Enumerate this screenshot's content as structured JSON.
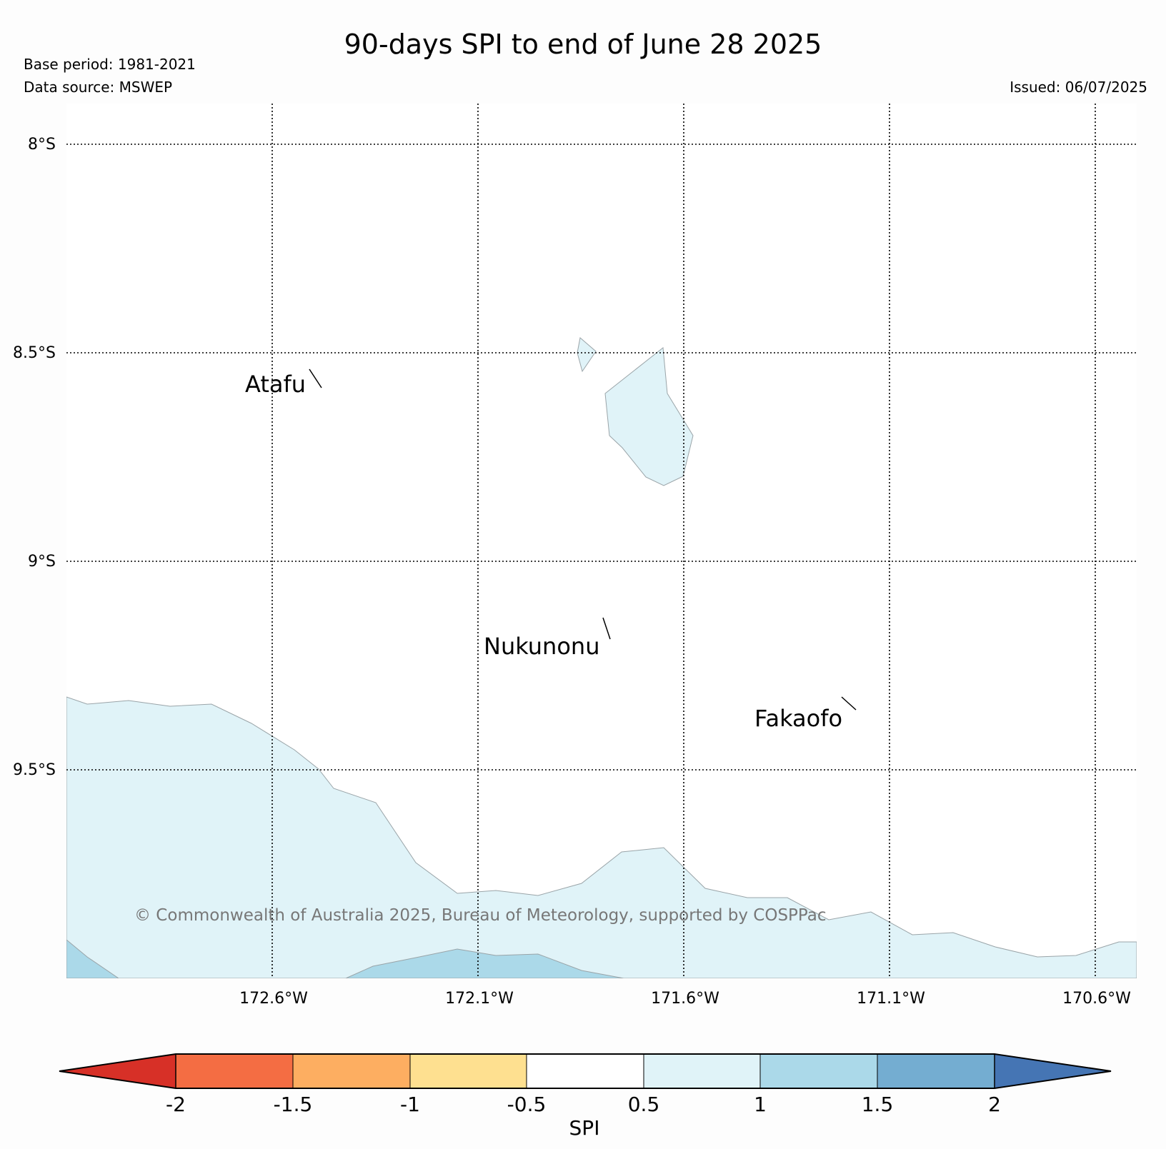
{
  "title": "90-days SPI to end of June 28 2025",
  "meta": {
    "base_period": "Base period: 1981-2021",
    "data_source": "Data source: MSWEP",
    "issued": "Issued: 06/07/2025"
  },
  "map": {
    "lat_labels": [
      "8°S",
      "8.5°S",
      "9°S",
      "9.5°S"
    ],
    "lon_labels": [
      "172.6°W",
      "172.1°W",
      "171.6°W",
      "171.1°W",
      "170.6°W"
    ],
    "places": [
      "Atafu",
      "Nukunonu",
      "Fakaofo"
    ],
    "copyright": "© Commonwealth of Australia 2025, Bureau of Meteorology, supported by COSPPac"
  },
  "colorbar": {
    "label": "SPI",
    "ticks": [
      "-2",
      "-1.5",
      "-1",
      "-0.5",
      "0.5",
      "1",
      "1.5",
      "2"
    ],
    "colors": {
      "lt_-2": "#d73027",
      "-2_-1.5": "#f46d43",
      "-1.5_-1": "#fdae61",
      "-1_-0.5": "#fee090",
      "-0.5_0.5": "#ffffff",
      "0.5_1": "#e0f3f8",
      "1_1.5": "#abd9e9",
      "1.5_2": "#74add1",
      "gt_2": "#4575b4"
    }
  }
}
